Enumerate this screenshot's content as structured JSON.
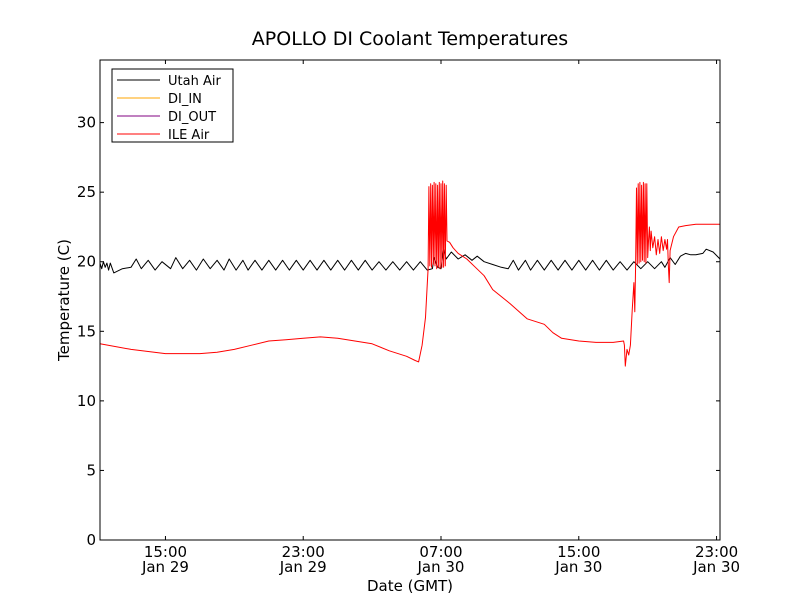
{
  "chart_data": {
    "type": "line",
    "title": "APOLLO DI Coolant Temperatures",
    "xlabel": "Date (GMT)",
    "ylabel": "Temperature (C)",
    "x_unit": "hours since Jan 29 00:00 GMT",
    "xlim": [
      11.2,
      47.2
    ],
    "ylim": [
      0,
      34.5
    ],
    "yticks": [
      0,
      5,
      10,
      15,
      20,
      25,
      30
    ],
    "xticks": [
      {
        "x": 15,
        "time": "15:00",
        "date": "Jan 29"
      },
      {
        "x": 23,
        "time": "23:00",
        "date": "Jan 29"
      },
      {
        "x": 31,
        "time": "07:00",
        "date": "Jan 30"
      },
      {
        "x": 39,
        "time": "15:00",
        "date": "Jan 30"
      },
      {
        "x": 47,
        "time": "23:00",
        "date": "Jan 30"
      }
    ],
    "legend_position": "top-left",
    "series": [
      {
        "name": "Utah Air",
        "color": "#000000",
        "points": [
          [
            11.2,
            19.9
          ],
          [
            11.3,
            19.5
          ],
          [
            11.4,
            20.0
          ],
          [
            11.5,
            19.6
          ],
          [
            11.6,
            19.9
          ],
          [
            11.7,
            19.4
          ],
          [
            11.8,
            19.9
          ],
          [
            12.0,
            19.2
          ],
          [
            12.5,
            19.5
          ],
          [
            13.0,
            19.6
          ],
          [
            13.3,
            20.2
          ],
          [
            13.6,
            19.5
          ],
          [
            14.0,
            20.1
          ],
          [
            14.4,
            19.4
          ],
          [
            14.8,
            20.0
          ],
          [
            15.3,
            19.5
          ],
          [
            15.6,
            20.3
          ],
          [
            16.0,
            19.5
          ],
          [
            16.4,
            20.1
          ],
          [
            16.8,
            19.4
          ],
          [
            17.2,
            20.2
          ],
          [
            17.6,
            19.5
          ],
          [
            18.0,
            20.1
          ],
          [
            18.4,
            19.4
          ],
          [
            18.7,
            20.2
          ],
          [
            19.1,
            19.4
          ],
          [
            19.5,
            20.1
          ],
          [
            19.8,
            19.4
          ],
          [
            20.2,
            20.1
          ],
          [
            20.6,
            19.4
          ],
          [
            21.0,
            20.1
          ],
          [
            21.4,
            19.4
          ],
          [
            21.8,
            20.1
          ],
          [
            22.2,
            19.4
          ],
          [
            22.6,
            20.1
          ],
          [
            23.0,
            19.4
          ],
          [
            23.4,
            20.1
          ],
          [
            23.8,
            19.4
          ],
          [
            24.2,
            20.1
          ],
          [
            24.6,
            19.4
          ],
          [
            25.0,
            20.1
          ],
          [
            25.4,
            19.4
          ],
          [
            25.8,
            20.1
          ],
          [
            26.2,
            19.4
          ],
          [
            26.6,
            20.1
          ],
          [
            27.0,
            19.4
          ],
          [
            27.4,
            20.0
          ],
          [
            27.8,
            19.4
          ],
          [
            28.2,
            20.0
          ],
          [
            28.6,
            19.4
          ],
          [
            29.0,
            20.0
          ],
          [
            29.4,
            19.4
          ],
          [
            29.8,
            20.0
          ],
          [
            30.2,
            19.4
          ],
          [
            30.5,
            19.5
          ],
          [
            30.6,
            20.3
          ],
          [
            30.8,
            19.6
          ],
          [
            31.0,
            19.5
          ],
          [
            31.15,
            20.9
          ],
          [
            31.3,
            20.2
          ],
          [
            31.6,
            20.7
          ],
          [
            32.0,
            20.2
          ],
          [
            32.4,
            20.5
          ],
          [
            32.8,
            20.1
          ],
          [
            33.1,
            20.4
          ],
          [
            33.5,
            20.0
          ],
          [
            34.0,
            19.8
          ],
          [
            34.5,
            19.6
          ],
          [
            34.9,
            19.5
          ],
          [
            35.2,
            20.1
          ],
          [
            35.5,
            19.4
          ],
          [
            35.9,
            20.1
          ],
          [
            36.2,
            19.4
          ],
          [
            36.6,
            20.1
          ],
          [
            37.0,
            19.4
          ],
          [
            37.4,
            20.1
          ],
          [
            37.8,
            19.4
          ],
          [
            38.2,
            20.1
          ],
          [
            38.6,
            19.4
          ],
          [
            39.0,
            20.1
          ],
          [
            39.4,
            19.4
          ],
          [
            39.8,
            20.1
          ],
          [
            40.2,
            19.4
          ],
          [
            40.6,
            20.1
          ],
          [
            41.0,
            19.4
          ],
          [
            41.4,
            20.0
          ],
          [
            41.8,
            19.4
          ],
          [
            42.2,
            20.0
          ],
          [
            42.6,
            19.5
          ],
          [
            43.0,
            20.0
          ],
          [
            43.4,
            19.5
          ],
          [
            43.8,
            20.0
          ],
          [
            44.0,
            19.6
          ],
          [
            44.3,
            20.3
          ],
          [
            44.6,
            19.8
          ],
          [
            44.9,
            20.4
          ],
          [
            45.2,
            20.6
          ],
          [
            45.5,
            20.5
          ],
          [
            45.8,
            20.5
          ],
          [
            46.2,
            20.6
          ],
          [
            46.4,
            20.9
          ],
          [
            46.8,
            20.7
          ],
          [
            47.2,
            20.2
          ]
        ]
      },
      {
        "name": "DI_IN",
        "color": "#ffa500",
        "points": []
      },
      {
        "name": "DI_OUT",
        "color": "#800080",
        "points": []
      },
      {
        "name": "ILE Air",
        "color": "#ff0000",
        "points": [
          [
            11.2,
            14.1
          ],
          [
            13.0,
            13.7
          ],
          [
            15.0,
            13.4
          ],
          [
            16.0,
            13.4
          ],
          [
            17.0,
            13.4
          ],
          [
            18.0,
            13.5
          ],
          [
            19.0,
            13.7
          ],
          [
            20.0,
            14.0
          ],
          [
            21.0,
            14.3
          ],
          [
            22.0,
            14.4
          ],
          [
            23.0,
            14.5
          ],
          [
            24.0,
            14.6
          ],
          [
            25.0,
            14.5
          ],
          [
            26.0,
            14.3
          ],
          [
            27.0,
            14.1
          ],
          [
            28.0,
            13.6
          ],
          [
            29.0,
            13.2
          ],
          [
            29.5,
            12.9
          ],
          [
            29.7,
            12.8
          ],
          [
            29.9,
            14.0
          ],
          [
            30.1,
            16.0
          ],
          [
            30.2,
            18.3
          ],
          [
            30.25,
            19.5
          ],
          [
            30.3,
            25.4
          ],
          [
            30.35,
            19.7
          ],
          [
            30.4,
            25.6
          ],
          [
            30.45,
            19.6
          ],
          [
            30.5,
            25.5
          ],
          [
            30.55,
            19.8
          ],
          [
            30.6,
            25.7
          ],
          [
            30.65,
            19.7
          ],
          [
            30.7,
            25.6
          ],
          [
            30.75,
            19.5
          ],
          [
            30.8,
            25.5
          ],
          [
            30.85,
            19.6
          ],
          [
            30.9,
            25.7
          ],
          [
            30.95,
            19.5
          ],
          [
            31.0,
            25.6
          ],
          [
            31.05,
            19.6
          ],
          [
            31.1,
            25.8
          ],
          [
            31.15,
            19.6
          ],
          [
            31.2,
            25.6
          ],
          [
            31.25,
            19.7
          ],
          [
            31.3,
            25.5
          ],
          [
            31.35,
            21.5
          ],
          [
            31.5,
            21.4
          ],
          [
            31.7,
            21.0
          ],
          [
            32.0,
            20.6
          ],
          [
            32.5,
            20.2
          ],
          [
            33.0,
            19.6
          ],
          [
            33.5,
            19.0
          ],
          [
            34.0,
            18.0
          ],
          [
            35.0,
            17.0
          ],
          [
            36.0,
            15.9
          ],
          [
            37.0,
            15.5
          ],
          [
            37.5,
            14.9
          ],
          [
            38.0,
            14.5
          ],
          [
            39.0,
            14.3
          ],
          [
            40.0,
            14.2
          ],
          [
            41.0,
            14.2
          ],
          [
            41.6,
            14.3
          ],
          [
            41.65,
            14.0
          ],
          [
            41.7,
            12.5
          ],
          [
            41.8,
            13.7
          ],
          [
            41.9,
            13.3
          ],
          [
            42.0,
            14.0
          ],
          [
            42.1,
            16.5
          ],
          [
            42.2,
            18.5
          ],
          [
            42.25,
            16.4
          ],
          [
            42.3,
            19.7
          ],
          [
            42.35,
            25.3
          ],
          [
            42.4,
            19.8
          ],
          [
            42.45,
            25.6
          ],
          [
            42.5,
            19.9
          ],
          [
            42.55,
            25.7
          ],
          [
            42.6,
            20.0
          ],
          [
            42.65,
            25.5
          ],
          [
            42.7,
            20.1
          ],
          [
            42.75,
            25.7
          ],
          [
            42.8,
            20.0
          ],
          [
            42.85,
            25.6
          ],
          [
            42.9,
            19.9
          ],
          [
            42.95,
            25.6
          ],
          [
            43.0,
            20.3
          ],
          [
            43.05,
            21.5
          ],
          [
            43.1,
            22.5
          ],
          [
            43.15,
            20.8
          ],
          [
            43.2,
            22.2
          ],
          [
            43.3,
            21.0
          ],
          [
            43.4,
            21.8
          ],
          [
            43.5,
            20.5
          ],
          [
            43.6,
            21.6
          ],
          [
            43.7,
            20.6
          ],
          [
            43.8,
            21.8
          ],
          [
            43.9,
            20.8
          ],
          [
            44.0,
            21.6
          ],
          [
            44.1,
            20.9
          ],
          [
            44.15,
            21.6
          ],
          [
            44.2,
            19.8
          ],
          [
            44.25,
            18.5
          ],
          [
            44.3,
            20.8
          ],
          [
            44.5,
            21.8
          ],
          [
            44.8,
            22.5
          ],
          [
            45.2,
            22.6
          ],
          [
            45.8,
            22.7
          ],
          [
            46.5,
            22.7
          ],
          [
            47.2,
            22.7
          ]
        ]
      }
    ]
  }
}
